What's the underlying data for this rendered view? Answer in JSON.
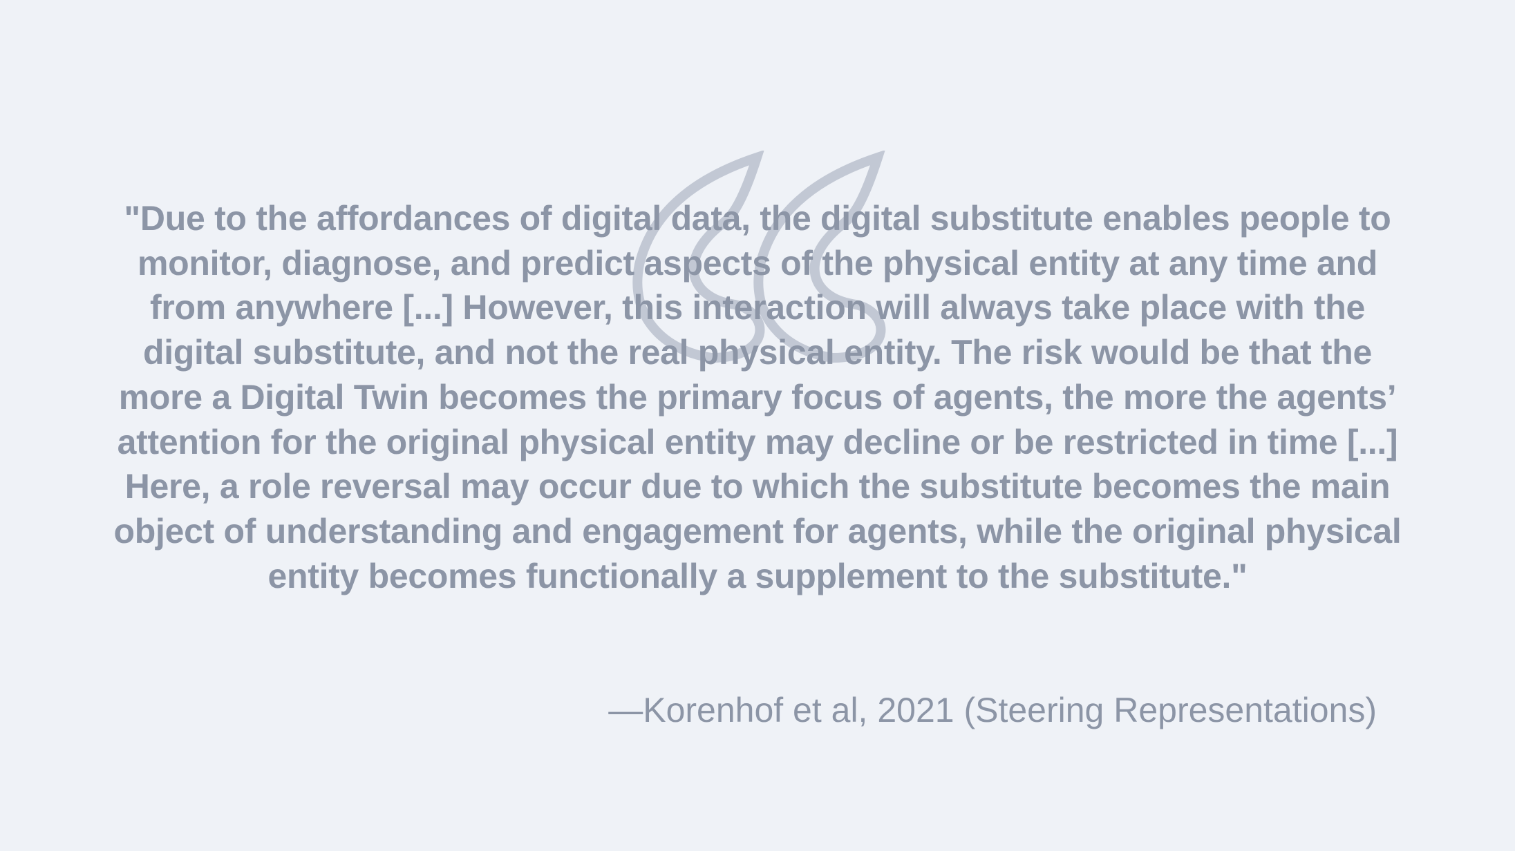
{
  "quote": {
    "text": "\"Due to the affordances of digital data, the digital substitute enables people to monitor, diagnose, and predict aspects of the physical entity at any time and from anywhere [...] However, this interaction will always take place with the digital substitute, and not the real physical entity. The risk would be that the more a Digital Twin becomes the primary focus of agents, the more the agents’ attention for the original physical entity may decline or be restricted in time [...] Here, a role reversal may occur due to which the substitute becomes the main object of understanding and engagement for agents, while the original physical entity becomes functionally a supplement to the substitute.\"",
    "attribution": "—Korenhof et al, 2021 (Steering Representations)",
    "icon": "quote-mark-icon"
  },
  "colors": {
    "background": "#eff2f7",
    "text": "#8c95a6",
    "quote_mark_outline": "#c2c8d4"
  }
}
